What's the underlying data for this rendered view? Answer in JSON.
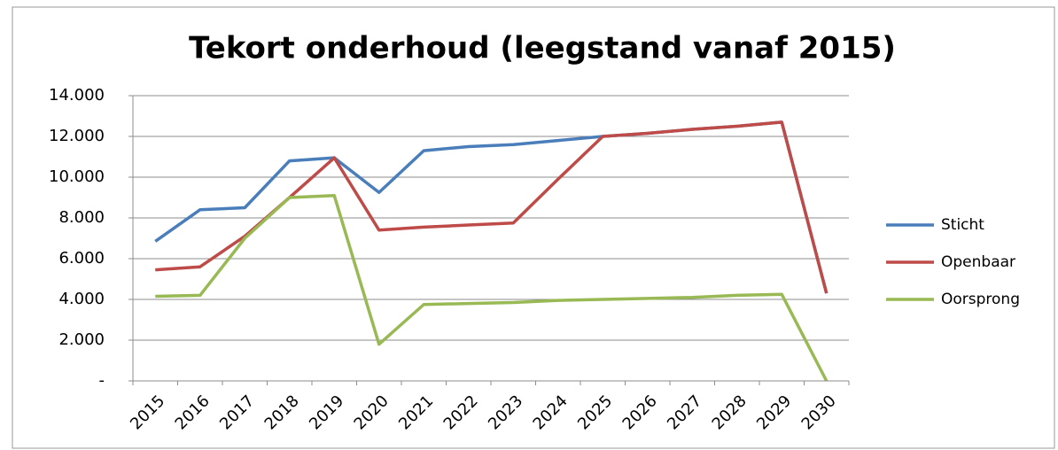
{
  "chart_data": {
    "type": "line",
    "title": "Tekort onderhoud (leegstand vanaf 2015)",
    "categories": [
      "2015",
      "2016",
      "2017",
      "2018",
      "2019",
      "2020",
      "2021",
      "2022",
      "2023",
      "2024",
      "2025",
      "2026",
      "2027",
      "2028",
      "2029",
      "2030"
    ],
    "series": [
      {
        "name": "Sticht",
        "color": "#4a7ebb",
        "values": [
          6850,
          8400,
          8500,
          10800,
          10950,
          9250,
          11300,
          11500,
          11600,
          11800,
          12000,
          12150,
          12350,
          12500,
          12700,
          4300
        ]
      },
      {
        "name": "Openbaar",
        "color": "#be4b48",
        "values": [
          5450,
          5600,
          7100,
          9000,
          10950,
          7400,
          7550,
          7650,
          7750,
          9900,
          12000,
          12150,
          12350,
          12500,
          12700,
          4300
        ]
      },
      {
        "name": "Oorsprong",
        "color": "#98b954",
        "values": [
          4150,
          4200,
          7000,
          9000,
          9100,
          1800,
          3750,
          3800,
          3850,
          3950,
          4000,
          4050,
          4100,
          4200,
          4250,
          0
        ]
      }
    ],
    "ylim": [
      0,
      14000
    ],
    "yticks": [
      {
        "value": 0,
        "label": "-"
      },
      {
        "value": 2000,
        "label": "2.000"
      },
      {
        "value": 4000,
        "label": "4.000"
      },
      {
        "value": 6000,
        "label": "6.000"
      },
      {
        "value": 8000,
        "label": "8.000"
      },
      {
        "value": 10000,
        "label": "10.000"
      },
      {
        "value": 12000,
        "label": "12.000"
      },
      {
        "value": 14000,
        "label": "14.000"
      }
    ],
    "grid": true,
    "legend": "right"
  }
}
